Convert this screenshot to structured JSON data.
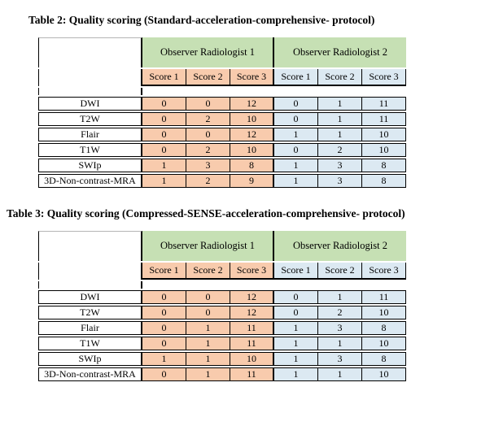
{
  "colors": {
    "header_green": "#c6e0b4",
    "observer1_orange": "#f8cbad",
    "observer2_blue": "#dce9f2",
    "border_black": "#000000",
    "page_background": "#ffffff"
  },
  "tables": [
    {
      "title": "Table 2: Quality scoring (Standard-acceleration-comprehensive- protocol)",
      "observer1": "Observer Radiologist 1",
      "observer2": "Observer Radiologist 2",
      "score_headers": [
        "Score 1",
        "Score 2",
        "Score 3",
        "Score 1",
        "Score 2",
        "Score 3"
      ],
      "rows": [
        {
          "label": "DWI",
          "values": [
            0,
            0,
            12,
            0,
            1,
            11
          ]
        },
        {
          "label": "T2W",
          "values": [
            0,
            2,
            10,
            0,
            1,
            11
          ]
        },
        {
          "label": "Flair",
          "values": [
            0,
            0,
            12,
            1,
            1,
            10
          ]
        },
        {
          "label": "T1W",
          "values": [
            0,
            2,
            10,
            0,
            2,
            10
          ]
        },
        {
          "label": "SWIp",
          "values": [
            1,
            3,
            8,
            1,
            3,
            8
          ]
        },
        {
          "label": "3D-Non-contrast-MRA",
          "values": [
            1,
            2,
            9,
            1,
            3,
            8
          ]
        }
      ]
    },
    {
      "title": "Table 3: Quality scoring (Compressed-SENSE-acceleration-comprehensive- protocol)",
      "observer1": "Observer Radiologist 1",
      "observer2": "Observer Radiologist 2",
      "score_headers": [
        "Score 1",
        "Score 2",
        "Score 3",
        "Score 1",
        "Score 2",
        "Score 3"
      ],
      "rows": [
        {
          "label": "DWI",
          "values": [
            0,
            0,
            12,
            0,
            1,
            11
          ]
        },
        {
          "label": "T2W",
          "values": [
            0,
            0,
            12,
            0,
            2,
            10
          ]
        },
        {
          "label": "Flair",
          "values": [
            0,
            1,
            11,
            1,
            3,
            8
          ]
        },
        {
          "label": "T1W",
          "values": [
            0,
            1,
            11,
            1,
            1,
            10
          ]
        },
        {
          "label": "SWIp",
          "values": [
            1,
            1,
            10,
            1,
            3,
            8
          ]
        },
        {
          "label": "3D-Non-contrast-MRA",
          "values": [
            0,
            1,
            11,
            1,
            1,
            10
          ]
        }
      ]
    }
  ]
}
